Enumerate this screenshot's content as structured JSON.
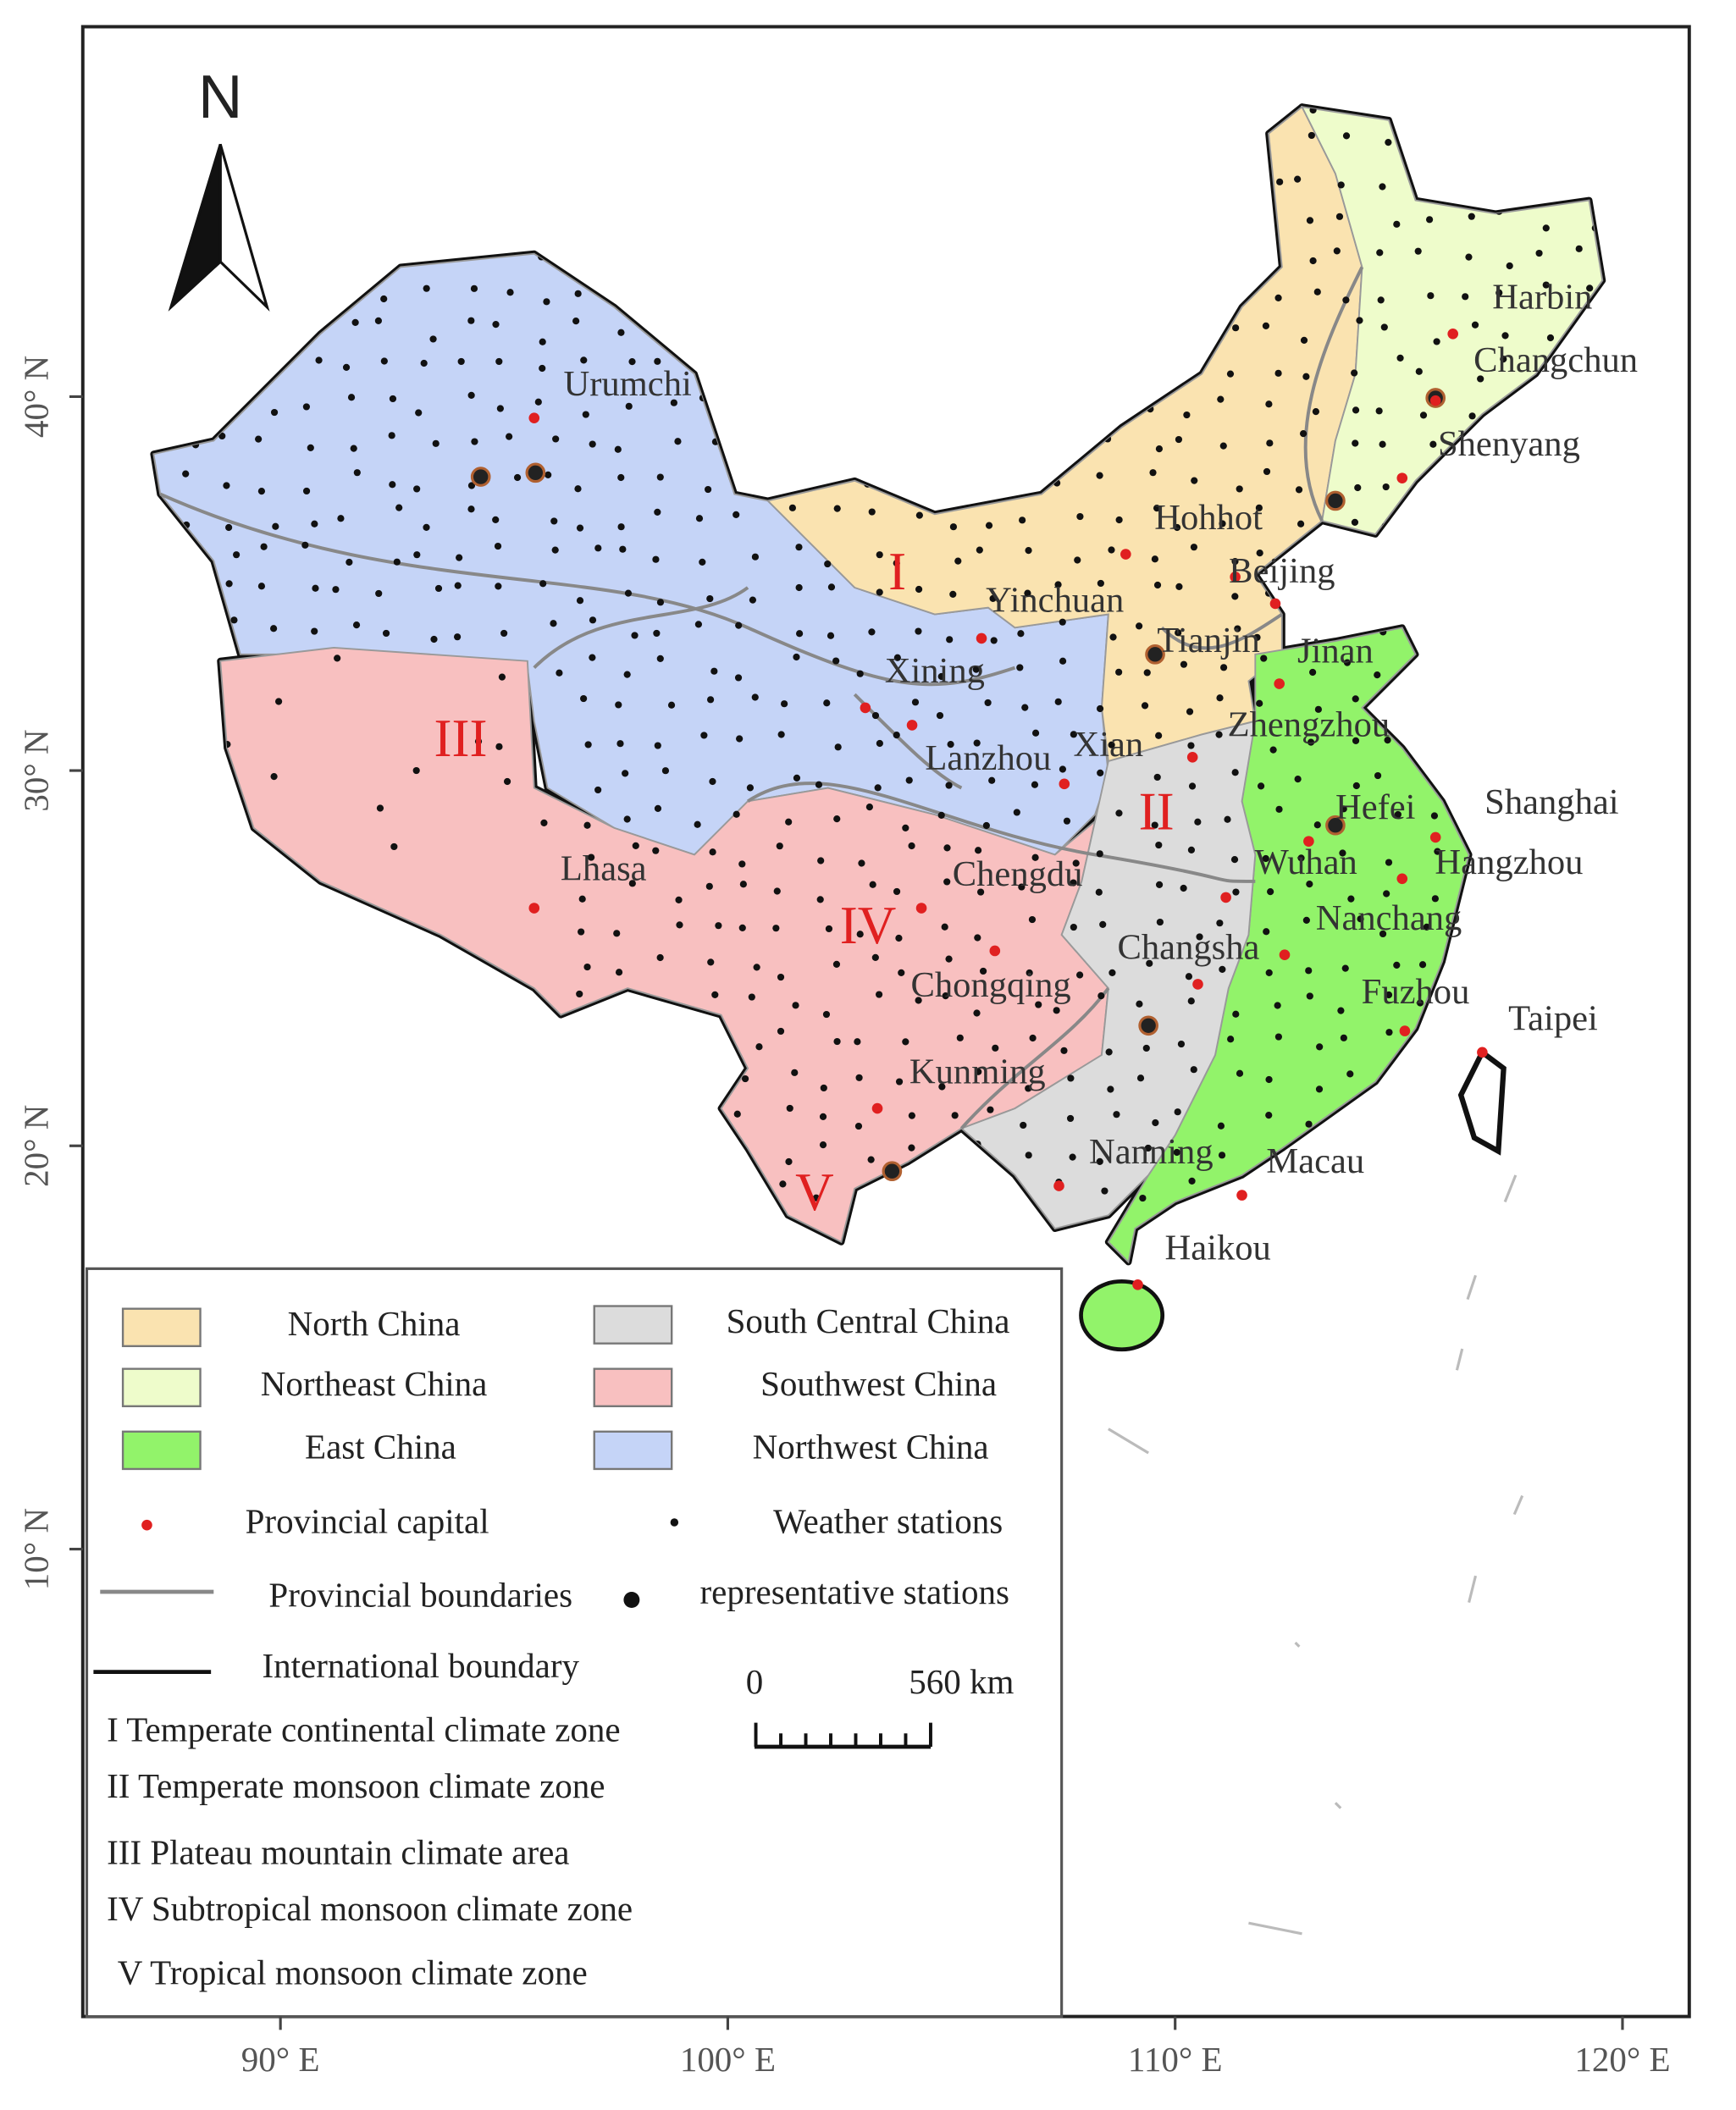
{
  "map": {
    "north_label": "N",
    "lon_labels": [
      "90° E",
      "100° E",
      "110° E",
      "120° E"
    ],
    "lat_labels": [
      "40° N",
      "30° N",
      "20° N",
      "10° N"
    ],
    "zones": [
      "I",
      "II",
      "III",
      "IV",
      "V"
    ],
    "cities": [
      "Urumchi",
      "Harbin",
      "Changchun",
      "Shenyang",
      "Hohhot",
      "Beijing",
      "Tianjin",
      "Yinchuan",
      "Jinan",
      "Xining",
      "Lanzhou",
      "Zhengzhou",
      "Xian",
      "Hefei",
      "Shanghai",
      "Wuhan",
      "Hangzhou",
      "Lhasa",
      "Chengdu",
      "Nanchang",
      "Changsha",
      "Chongqing",
      "Fuzhou",
      "Taipei",
      "Kunming",
      "Nanning",
      "Macau",
      "Haikou"
    ],
    "legend": {
      "regions": [
        "North China",
        "Northeast China",
        "East China",
        "South Central China",
        "Southwest China",
        "Northwest China"
      ],
      "markers": [
        "Provincial capital",
        "Weather stations",
        "Provincial boundaries",
        "representative stations",
        "International boundary"
      ],
      "scale": [
        "0",
        "560 km"
      ],
      "climate_zones": [
        "I Temperate continental climate zone",
        "II Temperate monsoon climate zone",
        "III Plateau mountain climate area",
        "IV Subtropical monsoon climate zone",
        "V Tropical monsoon climate zone"
      ]
    }
  }
}
